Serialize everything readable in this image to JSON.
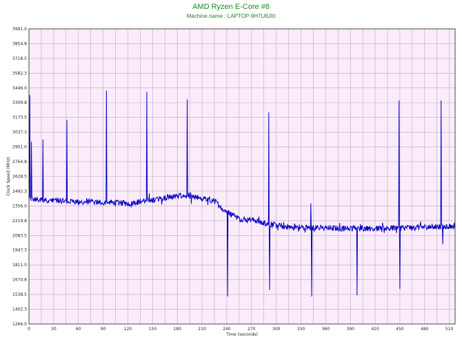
{
  "chart_data": {
    "type": "line",
    "title": "AMD Ryzen E-Core #8",
    "subtitle": "Machine name : LAPTOP-9H7U8JI0",
    "xlabel": "Time (seconds)",
    "ylabel": "Clock Speed (MHz)",
    "xlim": [
      0,
      517
    ],
    "ylim": [
      1266.0,
      3991.0
    ],
    "x_ticks": [
      0,
      30,
      60,
      90,
      120,
      150,
      180,
      210,
      240,
      270,
      300,
      330,
      360,
      390,
      420,
      450,
      480,
      510
    ],
    "y_ticks": [
      "1266.0",
      "1402.3",
      "1538.5",
      "1674.8",
      "1811.0",
      "1947.3",
      "2083.5",
      "2219.8",
      "2356.0",
      "2492.3",
      "2628.5",
      "2764.8",
      "2901.0",
      "3037.3",
      "3173.5",
      "3309.8",
      "3446.0",
      "3582.3",
      "3718.5",
      "3854.8",
      "3991.0"
    ],
    "grid": true,
    "background": "#fbecfb",
    "grid_color": "#b9a9b9",
    "line_color": "#0000c0",
    "series": [
      {
        "baseline": [
          [
            0,
            2420
          ],
          [
            40,
            2400
          ],
          [
            80,
            2390
          ],
          [
            120,
            2380
          ],
          [
            150,
            2410
          ],
          [
            170,
            2440
          ],
          [
            190,
            2450
          ],
          [
            210,
            2420
          ],
          [
            225,
            2400
          ],
          [
            235,
            2330
          ],
          [
            245,
            2280
          ],
          [
            255,
            2240
          ],
          [
            275,
            2220
          ],
          [
            295,
            2180
          ],
          [
            320,
            2160
          ],
          [
            360,
            2150
          ],
          [
            420,
            2150
          ],
          [
            480,
            2160
          ],
          [
            517,
            2170
          ]
        ],
        "spikes": [
          {
            "x": 1,
            "y": 3380
          },
          {
            "x": 3,
            "y": 2950
          },
          {
            "x": 17,
            "y": 2970
          },
          {
            "x": 46,
            "y": 3150
          },
          {
            "x": 94,
            "y": 3420
          },
          {
            "x": 143,
            "y": 3410
          },
          {
            "x": 192,
            "y": 3340
          },
          {
            "x": 241,
            "y": 1520
          },
          {
            "x": 291,
            "y": 3220
          },
          {
            "x": 292,
            "y": 1580
          },
          {
            "x": 342,
            "y": 2380
          },
          {
            "x": 343,
            "y": 1520
          },
          {
            "x": 398,
            "y": 1530
          },
          {
            "x": 449,
            "y": 3330
          },
          {
            "x": 450,
            "y": 1590
          },
          {
            "x": 500,
            "y": 3330
          },
          {
            "x": 502,
            "y": 2000
          }
        ]
      }
    ]
  }
}
